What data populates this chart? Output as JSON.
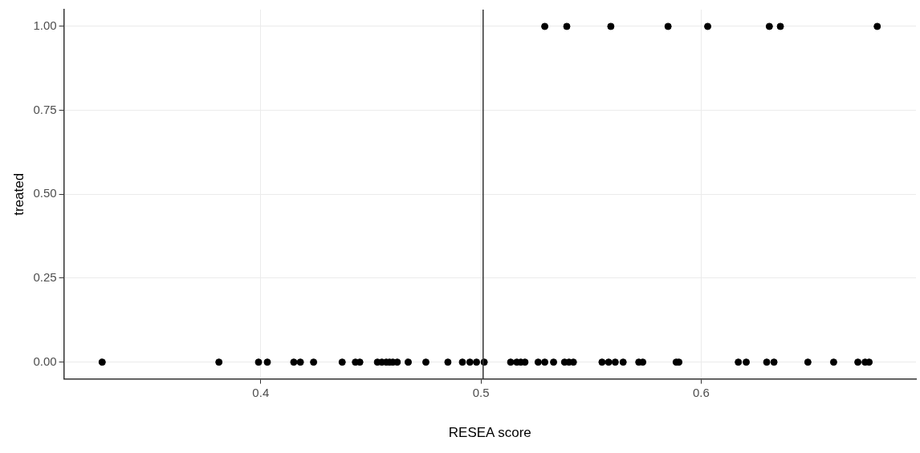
{
  "chart_data": {
    "type": "scatter",
    "xlabel": "RESEA score",
    "ylabel": "treated",
    "xlim": [
      0.3106,
      0.6976
    ],
    "xticks": [
      0.4,
      0.5,
      0.6
    ],
    "ylim": [
      -0.05,
      1.05
    ],
    "yticks": [
      {
        "value": 0,
        "label": "0.00"
      },
      {
        "value": 0.25,
        "label": "0.25"
      },
      {
        "value": 0.5,
        "label": "0.50"
      },
      {
        "value": 0.75,
        "label": "0.75"
      },
      {
        "value": 1,
        "label": "1.00"
      }
    ],
    "grid": true,
    "legend": false,
    "marker": "circle",
    "ref_lines": [
      {
        "axis": "x",
        "value": 0.501,
        "color": "#333333"
      }
    ],
    "series": [
      {
        "color": "#000000",
        "x": [
          0.529,
          0.539,
          0.559,
          0.585,
          0.603,
          0.631,
          0.636,
          0.68
        ],
        "values": [
          1,
          1,
          1,
          1,
          1,
          1,
          1,
          1
        ]
      },
      {
        "color": "#000000",
        "x": [
          0.328,
          0.381,
          0.399,
          0.403,
          0.415,
          0.418,
          0.424,
          0.437,
          0.443,
          0.445,
          0.453,
          0.455,
          0.457,
          0.4585,
          0.46,
          0.462,
          0.467,
          0.475,
          0.485,
          0.4916,
          0.495,
          0.498,
          0.5015,
          0.5135,
          0.5163,
          0.5181,
          0.52,
          0.526,
          0.529,
          0.533,
          0.538,
          0.54,
          0.542,
          0.555,
          0.558,
          0.561,
          0.5646,
          0.5717,
          0.5735,
          0.5887,
          0.5899,
          0.6169,
          0.6205,
          0.6298,
          0.6331,
          0.6485,
          0.6602,
          0.6712,
          0.6745,
          0.6763
        ],
        "values": [
          0,
          0,
          0,
          0,
          0,
          0,
          0,
          0,
          0,
          0,
          0,
          0,
          0,
          0,
          0,
          0,
          0,
          0,
          0,
          0,
          0,
          0,
          0,
          0,
          0,
          0,
          0,
          0,
          0,
          0,
          0,
          0,
          0,
          0,
          0,
          0,
          0,
          0,
          0,
          0,
          0,
          0,
          0,
          0,
          0,
          0,
          0,
          0,
          0,
          0
        ]
      }
    ]
  }
}
